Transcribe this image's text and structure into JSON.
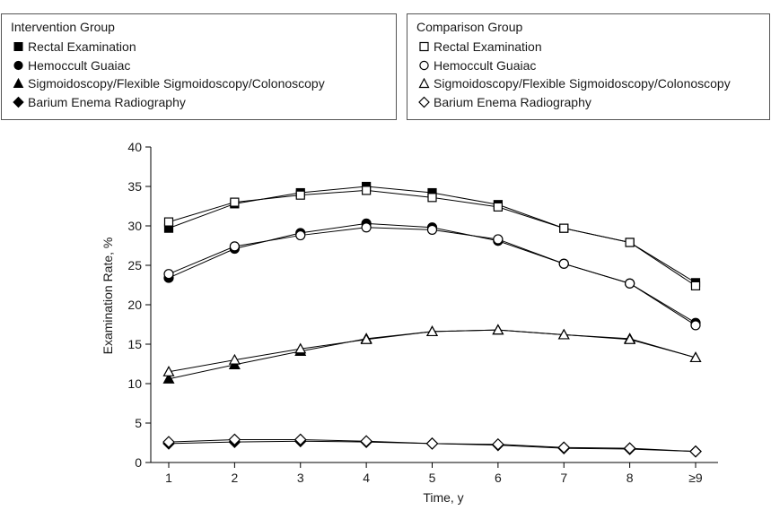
{
  "legends": [
    {
      "title": "Intervention Group",
      "entries": [
        {
          "label": "Rectal Examination",
          "marker": "square",
          "fill": "#000000"
        },
        {
          "label": "Hemoccult Guaiac",
          "marker": "circle",
          "fill": "#000000"
        },
        {
          "label": "Sigmoidoscopy/Flexible Sigmoidoscopy/Colonoscopy",
          "marker": "triangle",
          "fill": "#000000"
        },
        {
          "label": "Barium Enema Radiography",
          "marker": "diamond",
          "fill": "#000000"
        }
      ]
    },
    {
      "title": "Comparison Group",
      "entries": [
        {
          "label": "Rectal Examination",
          "marker": "square",
          "fill": "#ffffff"
        },
        {
          "label": "Hemoccult Guaiac",
          "marker": "circle",
          "fill": "#ffffff"
        },
        {
          "label": "Sigmoidoscopy/Flexible Sigmoidoscopy/Colonoscopy",
          "marker": "triangle",
          "fill": "#ffffff"
        },
        {
          "label": "Barium Enema Radiography",
          "marker": "diamond",
          "fill": "#ffffff"
        }
      ]
    }
  ],
  "chart_data": {
    "type": "line",
    "xlabel": "Time, y",
    "ylabel": "Examination Rate, %",
    "categories": [
      "1",
      "2",
      "3",
      "4",
      "5",
      "6",
      "7",
      "8",
      "≥9"
    ],
    "ylim": [
      0,
      40
    ],
    "yticks": [
      0,
      5,
      10,
      15,
      20,
      25,
      30,
      35,
      40
    ],
    "grid": false,
    "series": [
      {
        "name": "Rectal Examination",
        "group": "Intervention Group",
        "marker": "square",
        "filled": true,
        "values": [
          29.7,
          32.8,
          34.2,
          35.0,
          34.2,
          32.7,
          29.7,
          27.9,
          22.8
        ]
      },
      {
        "name": "Rectal Examination",
        "group": "Comparison Group",
        "marker": "square",
        "filled": false,
        "values": [
          30.5,
          33.0,
          33.9,
          34.5,
          33.6,
          32.4,
          29.7,
          27.9,
          22.4
        ]
      },
      {
        "name": "Hemoccult Guaiac",
        "group": "Intervention Group",
        "marker": "circle",
        "filled": true,
        "values": [
          23.4,
          27.1,
          29.1,
          30.3,
          29.8,
          28.1,
          25.2,
          22.7,
          17.7
        ]
      },
      {
        "name": "Hemoccult Guaiac",
        "group": "Comparison Group",
        "marker": "circle",
        "filled": false,
        "values": [
          23.9,
          27.4,
          28.8,
          29.8,
          29.5,
          28.3,
          25.2,
          22.7,
          17.4
        ]
      },
      {
        "name": "Sigmoidoscopy/Flexible Sigmoidoscopy/Colonoscopy",
        "group": "Intervention Group",
        "marker": "triangle",
        "filled": true,
        "values": [
          10.6,
          12.4,
          14.1,
          15.7,
          16.6,
          16.8,
          16.2,
          15.7,
          13.3
        ]
      },
      {
        "name": "Sigmoidoscopy/Flexible Sigmoidoscopy/Colonoscopy",
        "group": "Comparison Group",
        "marker": "triangle",
        "filled": false,
        "values": [
          11.5,
          13.0,
          14.4,
          15.6,
          16.6,
          16.8,
          16.2,
          15.6,
          13.3
        ]
      },
      {
        "name": "Barium Enema Radiography",
        "group": "Intervention Group",
        "marker": "diamond",
        "filled": true,
        "values": [
          2.4,
          2.6,
          2.7,
          2.6,
          2.4,
          2.2,
          1.8,
          1.7,
          1.4
        ]
      },
      {
        "name": "Barium Enema Radiography",
        "group": "Comparison Group",
        "marker": "diamond",
        "filled": false,
        "values": [
          2.6,
          2.9,
          2.9,
          2.7,
          2.4,
          2.3,
          1.9,
          1.8,
          1.4
        ]
      }
    ]
  }
}
